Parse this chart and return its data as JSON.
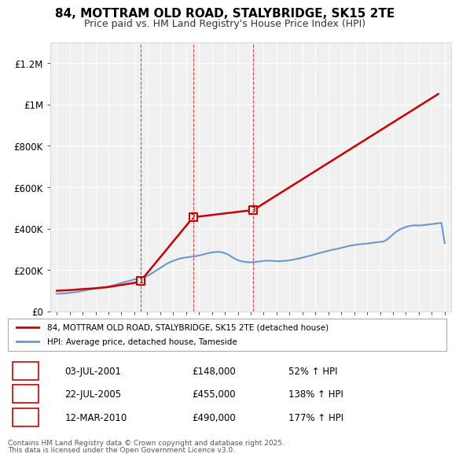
{
  "title": "84, MOTTRAM OLD ROAD, STALYBRIDGE, SK15 2TE",
  "subtitle": "Price paid vs. HM Land Registry's House Price Index (HPI)",
  "legend_line1": "84, MOTTRAM OLD ROAD, STALYBRIDGE, SK15 2TE (detached house)",
  "legend_line2": "HPI: Average price, detached house, Tameside",
  "footer1": "Contains HM Land Registry data © Crown copyright and database right 2025.",
  "footer2": "This data is licensed under the Open Government Licence v3.0.",
  "transactions": [
    {
      "num": 1,
      "date": "03-JUL-2001",
      "price": 148000,
      "hpi_pct": "52% ↑ HPI",
      "year": 2001.5
    },
    {
      "num": 2,
      "date": "22-JUL-2005",
      "price": 455000,
      "hpi_pct": "138% ↑ HPI",
      "year": 2005.55
    },
    {
      "num": 3,
      "date": "12-MAR-2010",
      "price": 490000,
      "hpi_pct": "177% ↑ HPI",
      "year": 2010.2
    }
  ],
  "hpi_color": "#6699cc",
  "price_color": "#cc0000",
  "vline_color": "#cc0000",
  "background_chart": "#f0f0f0",
  "background_fig": "#ffffff",
  "ylim": [
    0,
    1300000
  ],
  "yticks": [
    0,
    200000,
    400000,
    600000,
    800000,
    1000000,
    1200000
  ],
  "ytick_labels": [
    "£0",
    "£200K",
    "£400K",
    "£600K",
    "£800K",
    "£1M",
    "£1.2M"
  ],
  "xlim_start": 1994.5,
  "xlim_end": 2025.5,
  "hpi_data_x": [
    1995,
    1995.25,
    1995.5,
    1995.75,
    1996,
    1996.25,
    1996.5,
    1996.75,
    1997,
    1997.25,
    1997.5,
    1997.75,
    1998,
    1998.25,
    1998.5,
    1998.75,
    1999,
    1999.25,
    1999.5,
    1999.75,
    2000,
    2000.25,
    2000.5,
    2000.75,
    2001,
    2001.25,
    2001.5,
    2001.75,
    2002,
    2002.25,
    2002.5,
    2002.75,
    2003,
    2003.25,
    2003.5,
    2003.75,
    2004,
    2004.25,
    2004.5,
    2004.75,
    2005,
    2005.25,
    2005.5,
    2005.75,
    2006,
    2006.25,
    2006.5,
    2006.75,
    2007,
    2007.25,
    2007.5,
    2007.75,
    2008,
    2008.25,
    2008.5,
    2008.75,
    2009,
    2009.25,
    2009.5,
    2009.75,
    2010,
    2010.25,
    2010.5,
    2010.75,
    2011,
    2011.25,
    2011.5,
    2011.75,
    2012,
    2012.25,
    2012.5,
    2012.75,
    2013,
    2013.25,
    2013.5,
    2013.75,
    2014,
    2014.25,
    2014.5,
    2014.75,
    2015,
    2015.25,
    2015.5,
    2015.75,
    2016,
    2016.25,
    2016.5,
    2016.75,
    2017,
    2017.25,
    2017.5,
    2017.75,
    2018,
    2018.25,
    2018.5,
    2018.75,
    2019,
    2019.25,
    2019.5,
    2019.75,
    2020,
    2020.25,
    2020.5,
    2020.75,
    2021,
    2021.25,
    2021.5,
    2021.75,
    2022,
    2022.25,
    2022.5,
    2022.75,
    2023,
    2023.25,
    2023.5,
    2023.75,
    2024,
    2024.25,
    2024.5,
    2024.75,
    2025
  ],
  "hpi_data_y": [
    85000,
    86000,
    87000,
    88000,
    90000,
    92000,
    94000,
    96000,
    99000,
    102000,
    105000,
    108000,
    111000,
    113000,
    115000,
    117000,
    120000,
    124000,
    128000,
    133000,
    138000,
    142000,
    146000,
    150000,
    155000,
    158000,
    161000,
    165000,
    172000,
    180000,
    190000,
    200000,
    210000,
    220000,
    230000,
    238000,
    244000,
    250000,
    255000,
    258000,
    261000,
    263000,
    265000,
    267000,
    270000,
    274000,
    278000,
    282000,
    285000,
    287000,
    288000,
    286000,
    282000,
    275000,
    265000,
    255000,
    248000,
    243000,
    240000,
    238000,
    237000,
    238000,
    240000,
    242000,
    244000,
    245000,
    245000,
    244000,
    243000,
    243000,
    244000,
    245000,
    247000,
    250000,
    253000,
    256000,
    260000,
    264000,
    268000,
    272000,
    277000,
    281000,
    285000,
    289000,
    293000,
    297000,
    300000,
    303000,
    307000,
    311000,
    315000,
    318000,
    321000,
    323000,
    325000,
    326000,
    328000,
    330000,
    332000,
    334000,
    336000,
    337000,
    345000,
    358000,
    372000,
    385000,
    395000,
    402000,
    408000,
    412000,
    415000,
    416000,
    415000,
    416000,
    418000,
    420000,
    422000,
    424000,
    426000,
    428000,
    330000
  ],
  "price_data_x": [
    1995.0,
    1996.0,
    1997.0,
    1998.0,
    1999.0,
    2000.0,
    2001.0,
    2001.5,
    2005.55,
    2010.2,
    2024.5
  ],
  "price_data_y": [
    100000,
    103000,
    108000,
    112000,
    118000,
    128000,
    138000,
    148000,
    455000,
    490000,
    1050000
  ]
}
